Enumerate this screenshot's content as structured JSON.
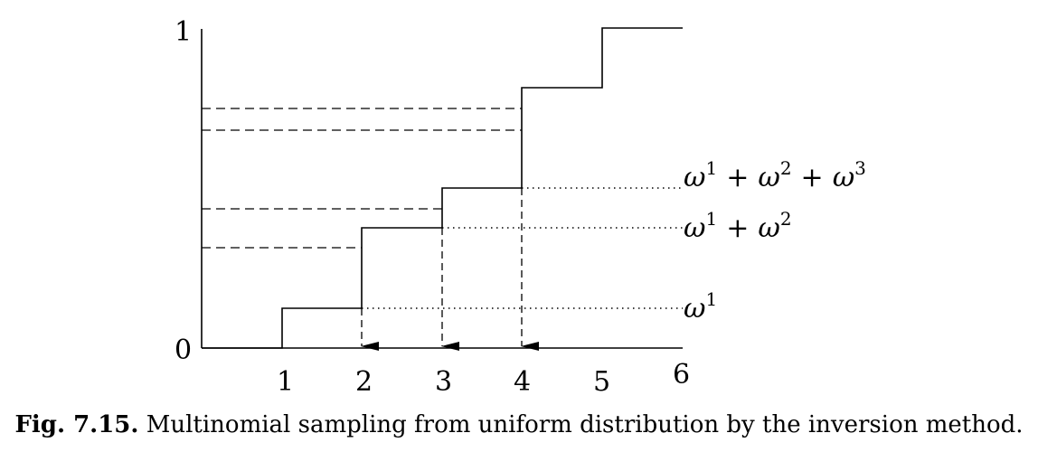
{
  "axes": {
    "y_top_label": "1",
    "y_bottom_label": "0",
    "x_ticks": [
      "1",
      "2",
      "3",
      "4",
      "5",
      "6"
    ]
  },
  "labels": {
    "w1": {
      "base": "ω",
      "sup": "1"
    },
    "w12": {
      "base": "ω",
      "sup1": "1",
      "plus": "+",
      "base2": "ω",
      "sup2": "2"
    },
    "w123": {
      "base": "ω",
      "sup1": "1",
      "plus1": "+",
      "base2": "ω",
      "sup2": "2",
      "plus2": "+",
      "base3": "ω",
      "sup3": "3"
    }
  },
  "caption": {
    "prefix": "Fig. 7.15.",
    "text": "Multinomial sampling from uniform distribution by the inversion method."
  }
}
